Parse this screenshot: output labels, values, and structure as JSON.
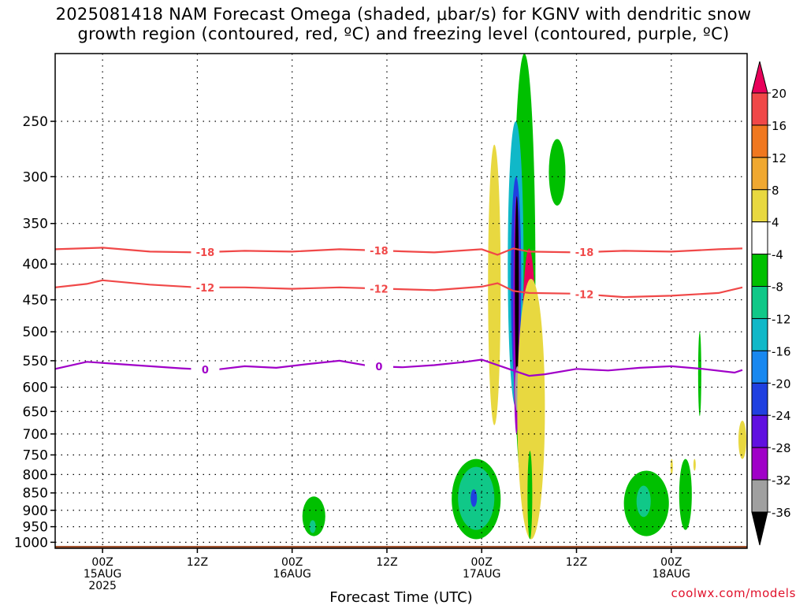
{
  "chart_data": {
    "type": "contour",
    "title_lines": [
      "2025081418 NAM Forecast Omega (shaded, μbar/s) for KGNV with dendritic snow",
      "growth region (contoured, red, ºC) and freezing level (contoured, purple, ºC)"
    ],
    "xlabel": "Forecast Time (UTC)",
    "ylabel": "",
    "y_axis": {
      "scale": "pressure (log)",
      "inverted": true,
      "ticks": [
        250,
        300,
        350,
        400,
        450,
        500,
        550,
        600,
        650,
        700,
        750,
        800,
        850,
        900,
        950,
        1000
      ],
      "range": [
        200,
        1020
      ]
    },
    "x_axis": {
      "range_hours": [
        -6,
        63
      ],
      "ticks": [
        {
          "hour": 0,
          "label": [
            "00Z",
            "15AUG",
            "2025"
          ]
        },
        {
          "hour": 12,
          "label": [
            "12Z"
          ]
        },
        {
          "hour": 24,
          "label": [
            "00Z",
            "16AUG"
          ]
        },
        {
          "hour": 36,
          "label": [
            "12Z"
          ]
        },
        {
          "hour": 48,
          "label": [
            "00Z",
            "17AUG"
          ]
        },
        {
          "hour": 60,
          "label": [
            "12Z"
          ]
        },
        {
          "hour": 72,
          "label": [
            "00Z",
            "18AUG"
          ]
        }
      ]
    },
    "grid": true,
    "colorbar": {
      "labels": [
        "20",
        "16",
        "12",
        "8",
        "4",
        "-4",
        "-8",
        "-12",
        "-16",
        "-20",
        "-24",
        "-28",
        "-32",
        "-36"
      ],
      "colors": [
        "#e8005a",
        "#f04848",
        "#f07820",
        "#f0a830",
        "#e8d840",
        "#ffffff",
        "#00c000",
        "#10c888",
        "#10b8c8",
        "#1888f0",
        "#2040e0",
        "#6010e0",
        "#a000c8",
        "#a0a0a0",
        "#000000"
      ],
      "units": "μbar/s"
    },
    "contours": [
      {
        "name": "-18",
        "color": "#f04848",
        "label_hours": [
          13,
          35,
          61
        ],
        "points": [
          [
            -6,
            381
          ],
          [
            0,
            379
          ],
          [
            6,
            384
          ],
          [
            12,
            385
          ],
          [
            18,
            383
          ],
          [
            24,
            384
          ],
          [
            30,
            381
          ],
          [
            36,
            383
          ],
          [
            42,
            385
          ],
          [
            48,
            381
          ],
          [
            50,
            388
          ],
          [
            52,
            380
          ],
          [
            54,
            384
          ],
          [
            60,
            385
          ],
          [
            66,
            383
          ],
          [
            72,
            384
          ],
          [
            78,
            381
          ],
          [
            81,
            380
          ]
        ]
      },
      {
        "name": "-12",
        "color": "#f04848",
        "label_hours": [
          13,
          35,
          61
        ],
        "points": [
          [
            -6,
            432
          ],
          [
            -2,
            427
          ],
          [
            0,
            422
          ],
          [
            6,
            428
          ],
          [
            12,
            432
          ],
          [
            18,
            432
          ],
          [
            24,
            434
          ],
          [
            30,
            432
          ],
          [
            36,
            434
          ],
          [
            42,
            436
          ],
          [
            48,
            431
          ],
          [
            50,
            426
          ],
          [
            52,
            437
          ],
          [
            54,
            440
          ],
          [
            60,
            441
          ],
          [
            66,
            446
          ],
          [
            72,
            444
          ],
          [
            78,
            440
          ],
          [
            81,
            432
          ]
        ]
      },
      {
        "name": "0",
        "color": "#a000c8",
        "label_hours": [
          13,
          35
        ],
        "points": [
          [
            -6,
            565
          ],
          [
            -2,
            552
          ],
          [
            2,
            556
          ],
          [
            6,
            560
          ],
          [
            10,
            564
          ],
          [
            14,
            567
          ],
          [
            18,
            560
          ],
          [
            22,
            563
          ],
          [
            26,
            556
          ],
          [
            30,
            550
          ],
          [
            34,
            560
          ],
          [
            38,
            562
          ],
          [
            42,
            558
          ],
          [
            46,
            552
          ],
          [
            48,
            548
          ],
          [
            52,
            568
          ],
          [
            54,
            578
          ],
          [
            56,
            575
          ],
          [
            60,
            565
          ],
          [
            64,
            568
          ],
          [
            68,
            563
          ],
          [
            72,
            560
          ],
          [
            76,
            565
          ],
          [
            80,
            572
          ],
          [
            81,
            567
          ]
        ]
      }
    ],
    "shaded_features": [
      {
        "name": "green-top-plume",
        "color": "#00c000",
        "hours": [
          52,
          54.8
        ],
        "pressures": [
          200,
          860
        ]
      },
      {
        "name": "green-blob-upper-right",
        "color": "#00c000",
        "hours": [
          56.5,
          58.6
        ],
        "pressures": [
          265,
          330
        ]
      },
      {
        "name": "yellow-left-band",
        "color": "#e8d840",
        "hours": [
          48.8,
          50.4
        ],
        "pressures": [
          270,
          680
        ]
      },
      {
        "name": "cyan-upper",
        "color": "#10b8c8",
        "hours": [
          51.3,
          53.3
        ],
        "pressures": [
          250,
          640
        ]
      },
      {
        "name": "blue-core",
        "color": "#2040e0",
        "hours": [
          51.7,
          53.0
        ],
        "pressures": [
          300,
          600
        ]
      },
      {
        "name": "purple-core",
        "color": "#a000c8",
        "hours": [
          52.0,
          52.8
        ],
        "pressures": [
          320,
          700
        ]
      },
      {
        "name": "black-core",
        "color": "#000000",
        "hours": [
          52.2,
          52.7
        ],
        "pressures": [
          320,
          590
        ]
      },
      {
        "name": "gray-core-tail",
        "color": "#a0a0a0",
        "hours": [
          52.2,
          52.8
        ],
        "pressures": [
          560,
          650
        ]
      },
      {
        "name": "magenta-band",
        "color": "#e8005a",
        "hours": [
          53.0,
          55.0
        ],
        "pressures": [
          380,
          960
        ]
      },
      {
        "name": "orange-band",
        "color": "#f07820",
        "hours": [
          52.8,
          55.5
        ],
        "pressures": [
          420,
          980
        ]
      },
      {
        "name": "yellow-right-band",
        "color": "#e8d840",
        "hours": [
          52.5,
          56.0
        ],
        "pressures": [
          420,
          990
        ]
      },
      {
        "name": "green-lower-left",
        "color": "#00c000",
        "hours": [
          44.2,
          50.4
        ],
        "pressures": [
          760,
          990
        ]
      },
      {
        "name": "teal-lower-left",
        "color": "#10c888",
        "hours": [
          45.0,
          49.6
        ],
        "pressures": [
          780,
          960
        ]
      },
      {
        "name": "blue-lower-left",
        "color": "#2040e0",
        "hours": [
          46.6,
          47.4
        ],
        "pressures": [
          840,
          890
        ]
      },
      {
        "name": "green-day16",
        "color": "#00c000",
        "hours": [
          25.3,
          28.2
        ],
        "pressures": [
          860,
          980
        ]
      },
      {
        "name": "teal-day16",
        "color": "#10c888",
        "hours": [
          26.2,
          27.0
        ],
        "pressures": [
          930,
          970
        ]
      },
      {
        "name": "green-day18",
        "color": "#00c000",
        "hours": [
          66.0,
          71.7
        ],
        "pressures": [
          790,
          980
        ]
      },
      {
        "name": "teal-day18",
        "color": "#10c888",
        "hours": [
          67.6,
          69.4
        ],
        "pressures": [
          830,
          920
        ]
      },
      {
        "name": "green-day18-right",
        "color": "#00c000",
        "hours": [
          73.0,
          74.6
        ],
        "pressures": [
          760,
          960
        ]
      },
      {
        "name": "green-sliver-right",
        "color": "#00c000",
        "hours": [
          75.4,
          75.8
        ],
        "pressures": [
          500,
          660
        ]
      },
      {
        "name": "yellow-small-a",
        "color": "#e8d840",
        "hours": [
          71.9,
          72.2
        ],
        "pressures": [
          760,
          800
        ]
      },
      {
        "name": "yellow-small-b",
        "color": "#e8d840",
        "hours": [
          74.8,
          75.1
        ],
        "pressures": [
          760,
          790
        ]
      },
      {
        "name": "yellow-right-edge",
        "color": "#e8d840",
        "hours": [
          80.5,
          81.5
        ],
        "pressures": [
          670,
          760
        ]
      },
      {
        "name": "green-near-surface-right",
        "color": "#00c000",
        "hours": [
          53.8,
          54.4
        ],
        "pressures": [
          740,
          990
        ]
      }
    ],
    "terrain": {
      "color": "#a0522d",
      "pressure": 1012
    }
  },
  "credit": "coolwx.com/models"
}
